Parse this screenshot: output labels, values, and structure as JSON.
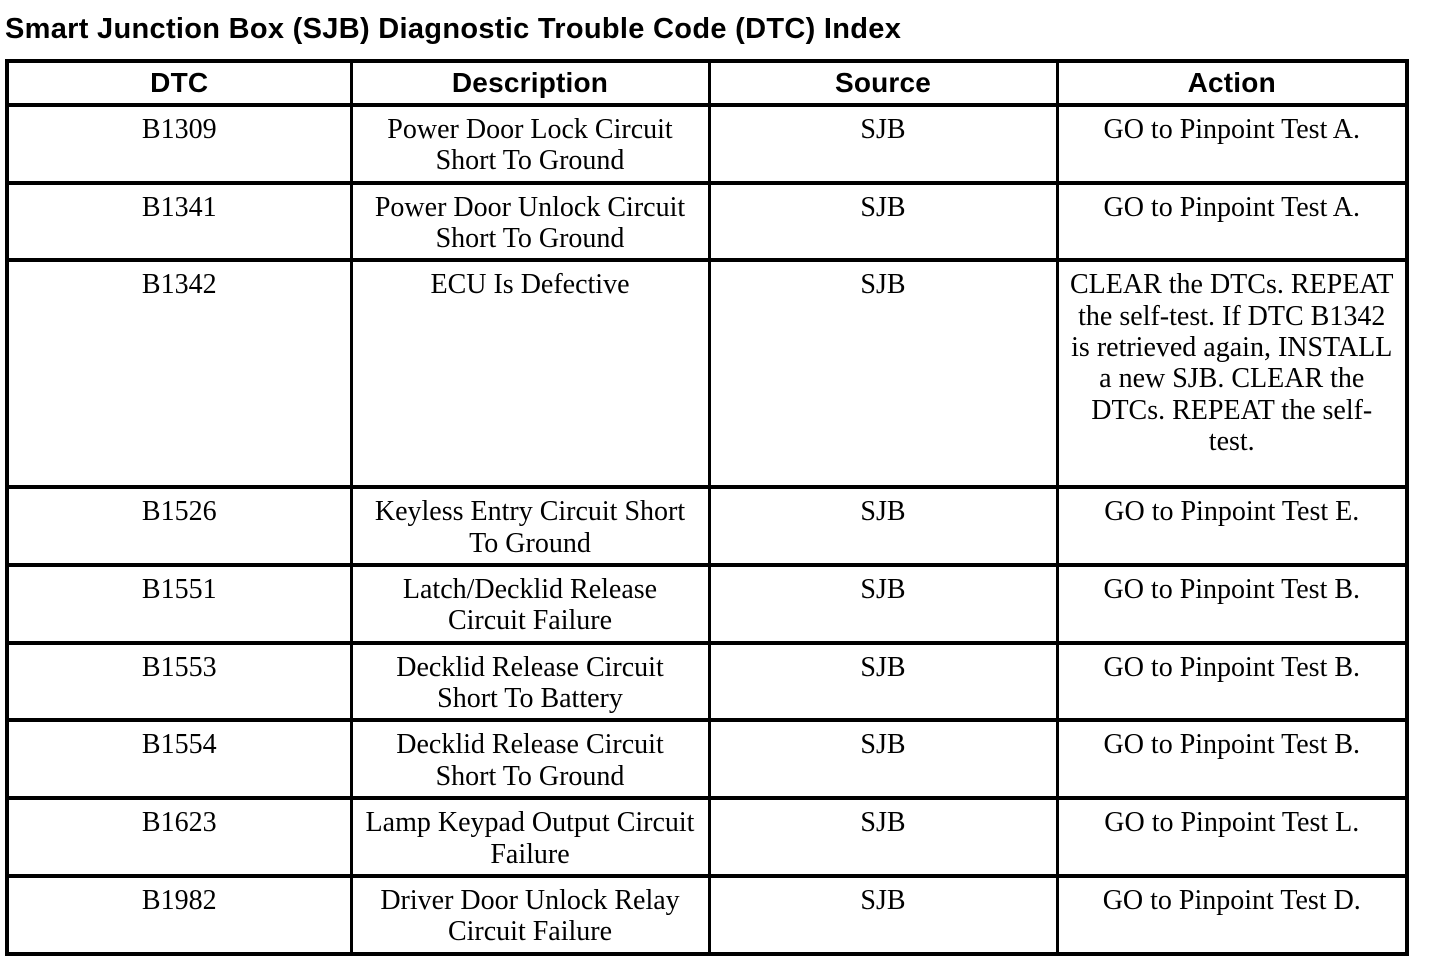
{
  "title": "Smart Junction Box (SJB) Diagnostic Trouble Code (DTC) Index",
  "table": {
    "columns": [
      "DTC",
      "Description",
      "Source",
      "Action"
    ],
    "rows": [
      {
        "dtc": "B1309",
        "description": "Power Door Lock Circuit Short To Ground",
        "source": "SJB",
        "action": "GO to Pinpoint Test A."
      },
      {
        "dtc": "B1341",
        "description": "Power Door Unlock Circuit Short To Ground",
        "source": "SJB",
        "action": "GO to Pinpoint Test A."
      },
      {
        "dtc": "B1342",
        "description": "ECU Is Defective",
        "source": "SJB",
        "action": "CLEAR the DTCs. REPEAT the self-test. If DTC B1342 is retrieved again, INSTALL a new SJB. CLEAR the DTCs. REPEAT the self-test."
      },
      {
        "dtc": "B1526",
        "description": "Keyless Entry Circuit Short To Ground",
        "source": "SJB",
        "action": "GO to Pinpoint Test E."
      },
      {
        "dtc": "B1551",
        "description": "Latch/Decklid Release Circuit Failure",
        "source": "SJB",
        "action": "GO to Pinpoint Test B."
      },
      {
        "dtc": "B1553",
        "description": "Decklid Release Circuit Short To Battery",
        "source": "SJB",
        "action": "GO to Pinpoint Test B."
      },
      {
        "dtc": "B1554",
        "description": "Decklid Release Circuit Short To Ground",
        "source": "SJB",
        "action": "GO to Pinpoint Test B."
      },
      {
        "dtc": "B1623",
        "description": "Lamp Keypad Output Circuit Failure",
        "source": "SJB",
        "action": "GO to Pinpoint Test L."
      },
      {
        "dtc": "B1982",
        "description": "Driver Door Unlock Relay Circuit Failure",
        "source": "SJB",
        "action": "GO to Pinpoint Test D."
      }
    ]
  },
  "colors": {
    "background": "#ffffff",
    "text": "#000000",
    "border": "#000000"
  }
}
